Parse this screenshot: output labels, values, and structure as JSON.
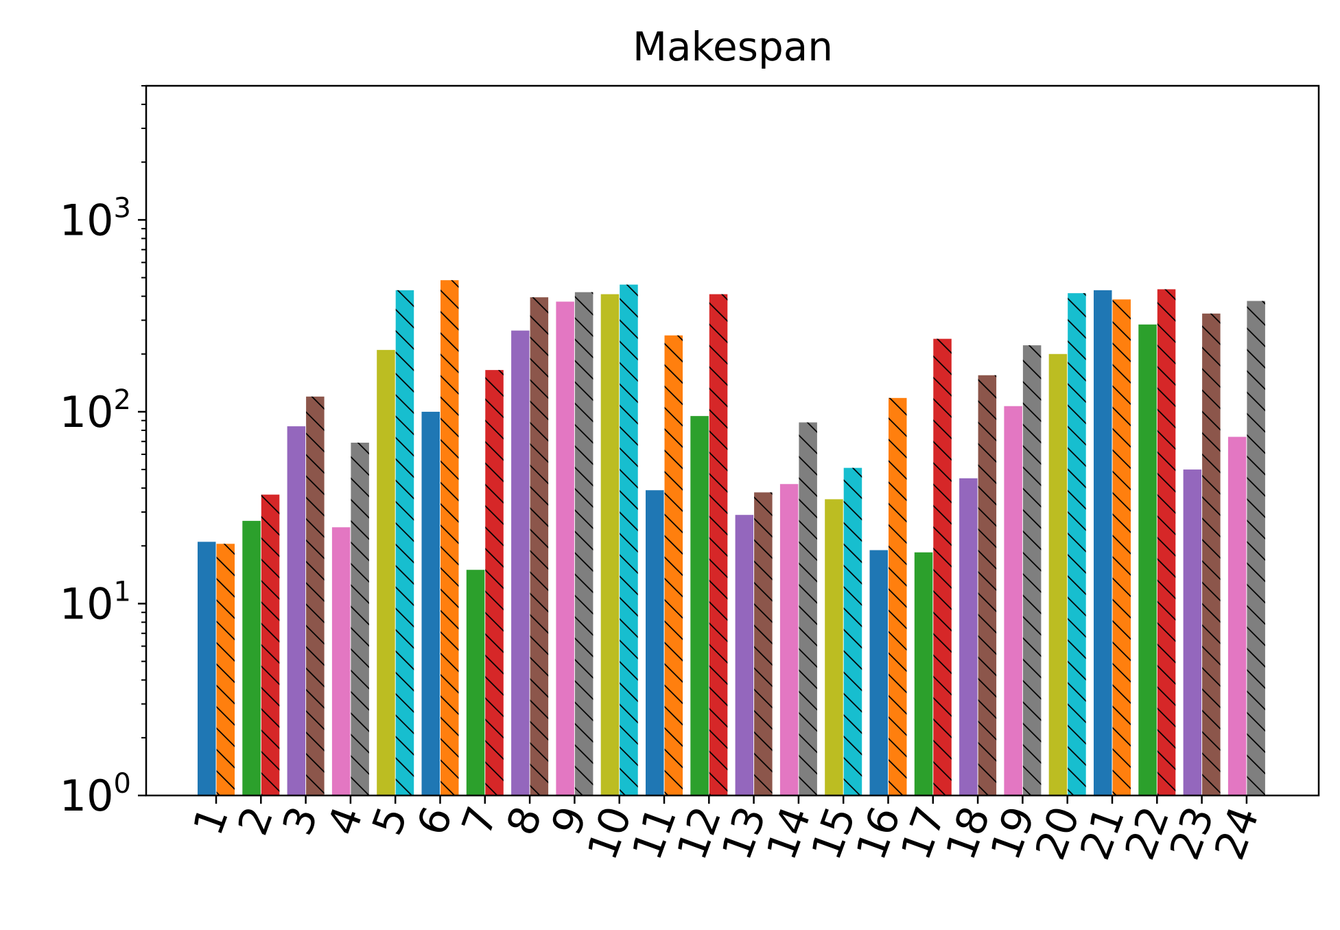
{
  "chart_data": {
    "type": "bar",
    "title": "Makespan",
    "xlabel": "",
    "ylabel": "",
    "y_scale": "log",
    "ylim": [
      1,
      5000
    ],
    "y_ticks": [
      {
        "value": 1,
        "base": "10",
        "exp": "0"
      },
      {
        "value": 10,
        "base": "10",
        "exp": "1"
      },
      {
        "value": 100,
        "base": "10",
        "exp": "2"
      },
      {
        "value": 1000,
        "base": "10",
        "exp": "3"
      }
    ],
    "categories": [
      "1",
      "2",
      "3",
      "4",
      "5",
      "6",
      "7",
      "8",
      "9",
      "10",
      "11",
      "12",
      "13",
      "14",
      "15",
      "16",
      "17",
      "18",
      "19",
      "20",
      "21",
      "22",
      "23",
      "24"
    ],
    "series": [
      {
        "values": [
          21,
          27,
          84,
          25,
          210,
          100,
          15,
          265,
          375,
          410,
          39,
          95,
          29,
          42,
          35,
          19,
          18.5,
          45,
          107,
          200,
          430,
          285,
          50,
          74
        ]
      },
      {
        "values": [
          20.5,
          37,
          120,
          69,
          430,
          485,
          165,
          395,
          420,
          460,
          250,
          410,
          38,
          88,
          51,
          118,
          240,
          155,
          222,
          415,
          385,
          435,
          325,
          378
        ]
      }
    ],
    "bar_colors": [
      [
        "#1f77b4",
        "#ff7f0e"
      ],
      [
        "#2ca02c",
        "#d62728"
      ],
      [
        "#9467bd",
        "#8c564b"
      ],
      [
        "#e377c2",
        "#7f7f7f"
      ],
      [
        "#bcbd22",
        "#17becf"
      ],
      [
        "#1f77b4",
        "#ff7f0e"
      ],
      [
        "#2ca02c",
        "#d62728"
      ],
      [
        "#9467bd",
        "#8c564b"
      ],
      [
        "#e377c2",
        "#7f7f7f"
      ],
      [
        "#bcbd22",
        "#17becf"
      ],
      [
        "#1f77b4",
        "#ff7f0e"
      ],
      [
        "#2ca02c",
        "#d62728"
      ],
      [
        "#9467bd",
        "#8c564b"
      ],
      [
        "#e377c2",
        "#7f7f7f"
      ],
      [
        "#bcbd22",
        "#17becf"
      ],
      [
        "#1f77b4",
        "#ff7f0e"
      ],
      [
        "#2ca02c",
        "#d62728"
      ],
      [
        "#9467bd",
        "#8c564b"
      ],
      [
        "#e377c2",
        "#7f7f7f"
      ],
      [
        "#bcbd22",
        "#17becf"
      ],
      [
        "#1f77b4",
        "#ff7f0e"
      ],
      [
        "#2ca02c",
        "#d62728"
      ],
      [
        "#9467bd",
        "#8c564b"
      ],
      [
        "#e377c2",
        "#7f7f7f"
      ]
    ],
    "hatch": [
      "none",
      "diagonal"
    ],
    "grid": false,
    "legend": "none"
  }
}
